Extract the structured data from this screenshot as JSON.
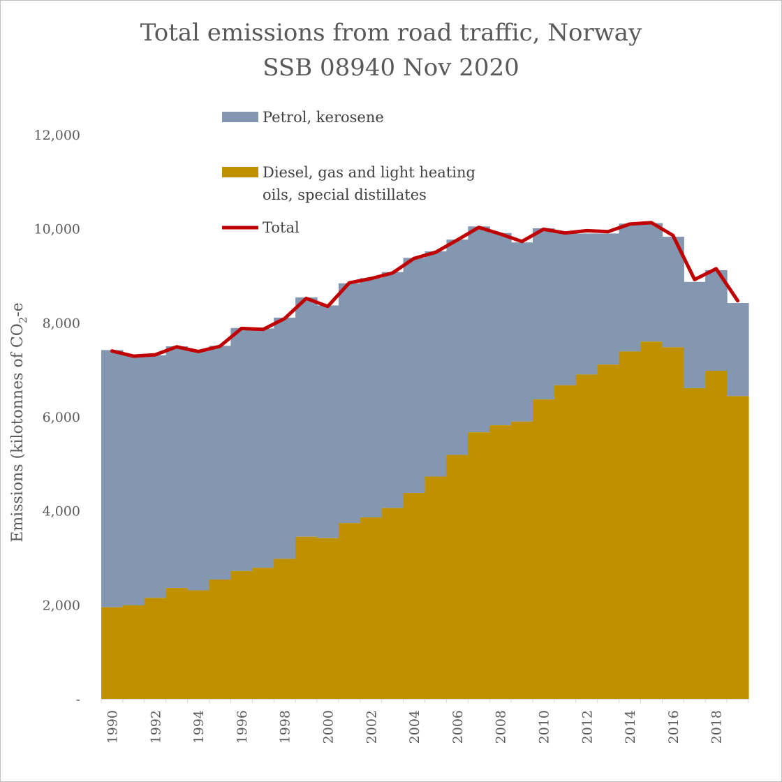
{
  "chart_data": {
    "type": "area",
    "title": "Total emissions from road traffic, Norway",
    "subtitle": "SSB 08940 Nov 2020",
    "ylabel": "Emissions (kilotonnes of CO2-e",
    "ylim": [
      0,
      12000
    ],
    "yticks": [
      "-",
      "2,000",
      "4,000",
      "6,000",
      "8,000",
      "10,000",
      "12,000"
    ],
    "x": [
      1990,
      1991,
      1992,
      1993,
      1994,
      1995,
      1996,
      1997,
      1998,
      1999,
      2000,
      2001,
      2002,
      2003,
      2004,
      2005,
      2006,
      2007,
      2008,
      2009,
      2010,
      2011,
      2012,
      2013,
      2014,
      2015,
      2016,
      2017,
      2018,
      2019
    ],
    "xtick_labels": [
      "1990",
      "1992",
      "1994",
      "1996",
      "1998",
      "2000",
      "2002",
      "2004",
      "2006",
      "2008",
      "2010",
      "2012",
      "2014",
      "2016",
      "2018"
    ],
    "legend_position": "top-left",
    "series": [
      {
        "name": "Petrol, kerosene",
        "color": "#8497b0",
        "values": [
          5470,
          5320,
          5160,
          5140,
          5100,
          4970,
          5170,
          5090,
          5130,
          5090,
          4950,
          5100,
          5090,
          5020,
          5000,
          4790,
          4580,
          4380,
          4090,
          3810,
          3640,
          3260,
          3000,
          2790,
          2720,
          2520,
          2350,
          2260,
          2140,
          1980
        ]
      },
      {
        "name": "Diesel, gas and light heating oils, special distillates",
        "color": "#bf9000",
        "values": [
          1950,
          1990,
          2150,
          2360,
          2310,
          2540,
          2720,
          2790,
          2980,
          3450,
          3420,
          3740,
          3860,
          4060,
          4380,
          4730,
          5190,
          5670,
          5820,
          5900,
          6370,
          6670,
          6900,
          7110,
          7390,
          7600,
          7480,
          6610,
          6980,
          6440
        ]
      },
      {
        "name": "Total",
        "color": "#c00000",
        "values": [
          7400,
          7290,
          7320,
          7490,
          7390,
          7500,
          7880,
          7860,
          8090,
          8520,
          8350,
          8850,
          8940,
          9060,
          9370,
          9500,
          9760,
          10030,
          9890,
          9730,
          9990,
          9910,
          9960,
          9940,
          10100,
          10130,
          9860,
          8920,
          9150,
          8470
        ]
      }
    ]
  }
}
